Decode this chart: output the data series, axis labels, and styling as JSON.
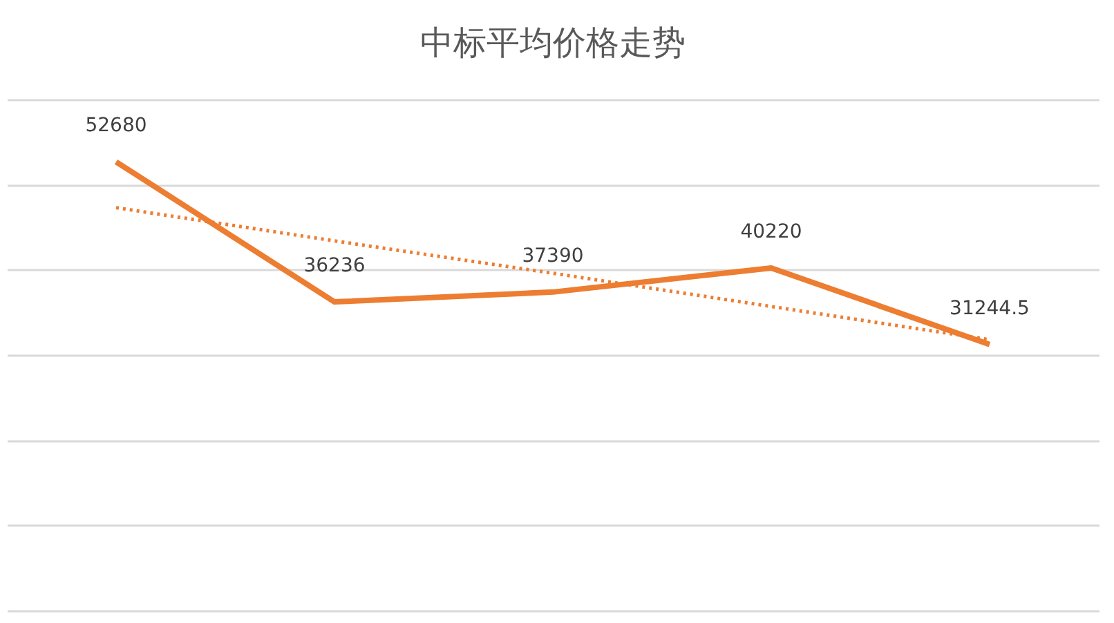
{
  "chart_data": {
    "type": "line",
    "title": "中标平均价格走势",
    "categories": [
      null,
      null,
      null,
      null,
      null
    ],
    "series": [
      {
        "color": "#ed7d31",
        "values": [
          52680,
          36236,
          37390,
          40220,
          31244.5
        ],
        "value_labels": [
          "52680",
          "36236",
          "37390",
          "40220",
          "31244.5"
        ],
        "line_style": "solid"
      },
      {
        "type": "line",
        "color": "#ed7d31",
        "values": [
          47300,
          43400,
          39600,
          35700,
          31800
        ],
        "line_style": "dotted"
      }
    ],
    "ylim": [
      0,
      60000
    ],
    "yticks": [
      0,
      10000,
      20000,
      30000,
      40000,
      50000,
      60000
    ],
    "grid": "y",
    "tick_labels": false,
    "marker": "none"
  }
}
